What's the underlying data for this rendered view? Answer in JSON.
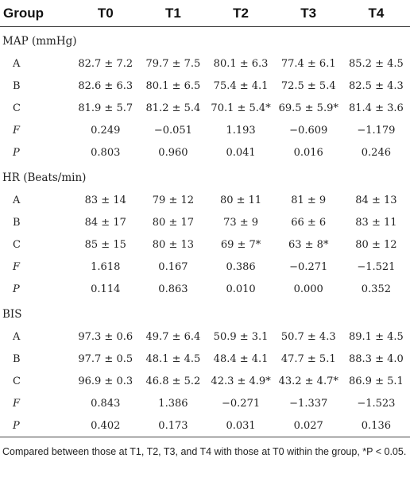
{
  "table": {
    "headers": [
      "Group",
      "T0",
      "T1",
      "T2",
      "T3",
      "T4"
    ],
    "sections": [
      {
        "title": "MAP (mmHg)",
        "rows": [
          {
            "label": "A",
            "italic": false,
            "cells": [
              "82.7 ± 7.2",
              "79.7 ± 7.5",
              "80.1 ± 6.3",
              "77.4 ± 6.1",
              "85.2 ± 4.5"
            ]
          },
          {
            "label": "B",
            "italic": false,
            "cells": [
              "82.6 ± 6.3",
              "80.1 ± 6.5",
              "75.4 ± 4.1",
              "72.5 ± 5.4",
              "82.5 ± 4.3"
            ]
          },
          {
            "label": "C",
            "italic": false,
            "cells": [
              "81.9 ± 5.7",
              "81.2 ± 5.4",
              "70.1 ± 5.4*",
              "69.5 ± 5.9*",
              "81.4 ± 3.6"
            ]
          },
          {
            "label": "F",
            "italic": true,
            "cells": [
              "0.249",
              "−0.051",
              "1.193",
              "−0.609",
              "−1.179"
            ]
          },
          {
            "label": "P",
            "italic": true,
            "cells": [
              "0.803",
              "0.960",
              "0.041",
              "0.016",
              "0.246"
            ]
          }
        ]
      },
      {
        "title": "HR (Beats/min)",
        "rows": [
          {
            "label": "A",
            "italic": false,
            "cells": [
              "83 ± 14",
              "79 ± 12",
              "80 ± 11",
              "81 ± 9",
              "84 ± 13"
            ]
          },
          {
            "label": "B",
            "italic": false,
            "cells": [
              "84 ± 17",
              "80 ± 17",
              "73 ± 9",
              "66 ± 6",
              "83 ± 11"
            ]
          },
          {
            "label": "C",
            "italic": false,
            "cells": [
              "85 ± 15",
              "80 ± 13",
              "69 ± 7*",
              "63 ± 8*",
              "80 ± 12"
            ]
          },
          {
            "label": "F",
            "italic": true,
            "cells": [
              "1.618",
              "0.167",
              "0.386",
              "−0.271",
              "−1.521"
            ]
          },
          {
            "label": "P",
            "italic": true,
            "cells": [
              "0.114",
              "0.863",
              "0.010",
              "0.000",
              "0.352"
            ]
          }
        ]
      },
      {
        "title": "BIS",
        "rows": [
          {
            "label": "A",
            "italic": false,
            "cells": [
              "97.3 ± 0.6",
              "49.7 ± 6.4",
              "50.9 ± 3.1",
              "50.7 ± 4.3",
              "89.1 ± 4.5"
            ]
          },
          {
            "label": "B",
            "italic": false,
            "cells": [
              "97.7 ± 0.5",
              "48.1 ± 4.5",
              "48.4 ± 4.1",
              "47.7 ± 5.1",
              "88.3 ± 4.0"
            ]
          },
          {
            "label": "C",
            "italic": false,
            "cells": [
              "96.9 ± 0.3",
              "46.8 ± 5.2",
              "42.3 ± 4.9*",
              "43.2 ± 4.7*",
              "86.9 ± 5.1"
            ]
          },
          {
            "label": "F",
            "italic": true,
            "cells": [
              "0.843",
              "1.386",
              "−0.271",
              "−1.337",
              "−1.523"
            ]
          },
          {
            "label": "P",
            "italic": true,
            "cells": [
              "0.402",
              "0.173",
              "0.031",
              "0.027",
              "0.136"
            ]
          }
        ]
      }
    ]
  },
  "footnote": "Compared between those at T1, T2, T3, and T4 with those at T0 within the group, *P < 0.05."
}
